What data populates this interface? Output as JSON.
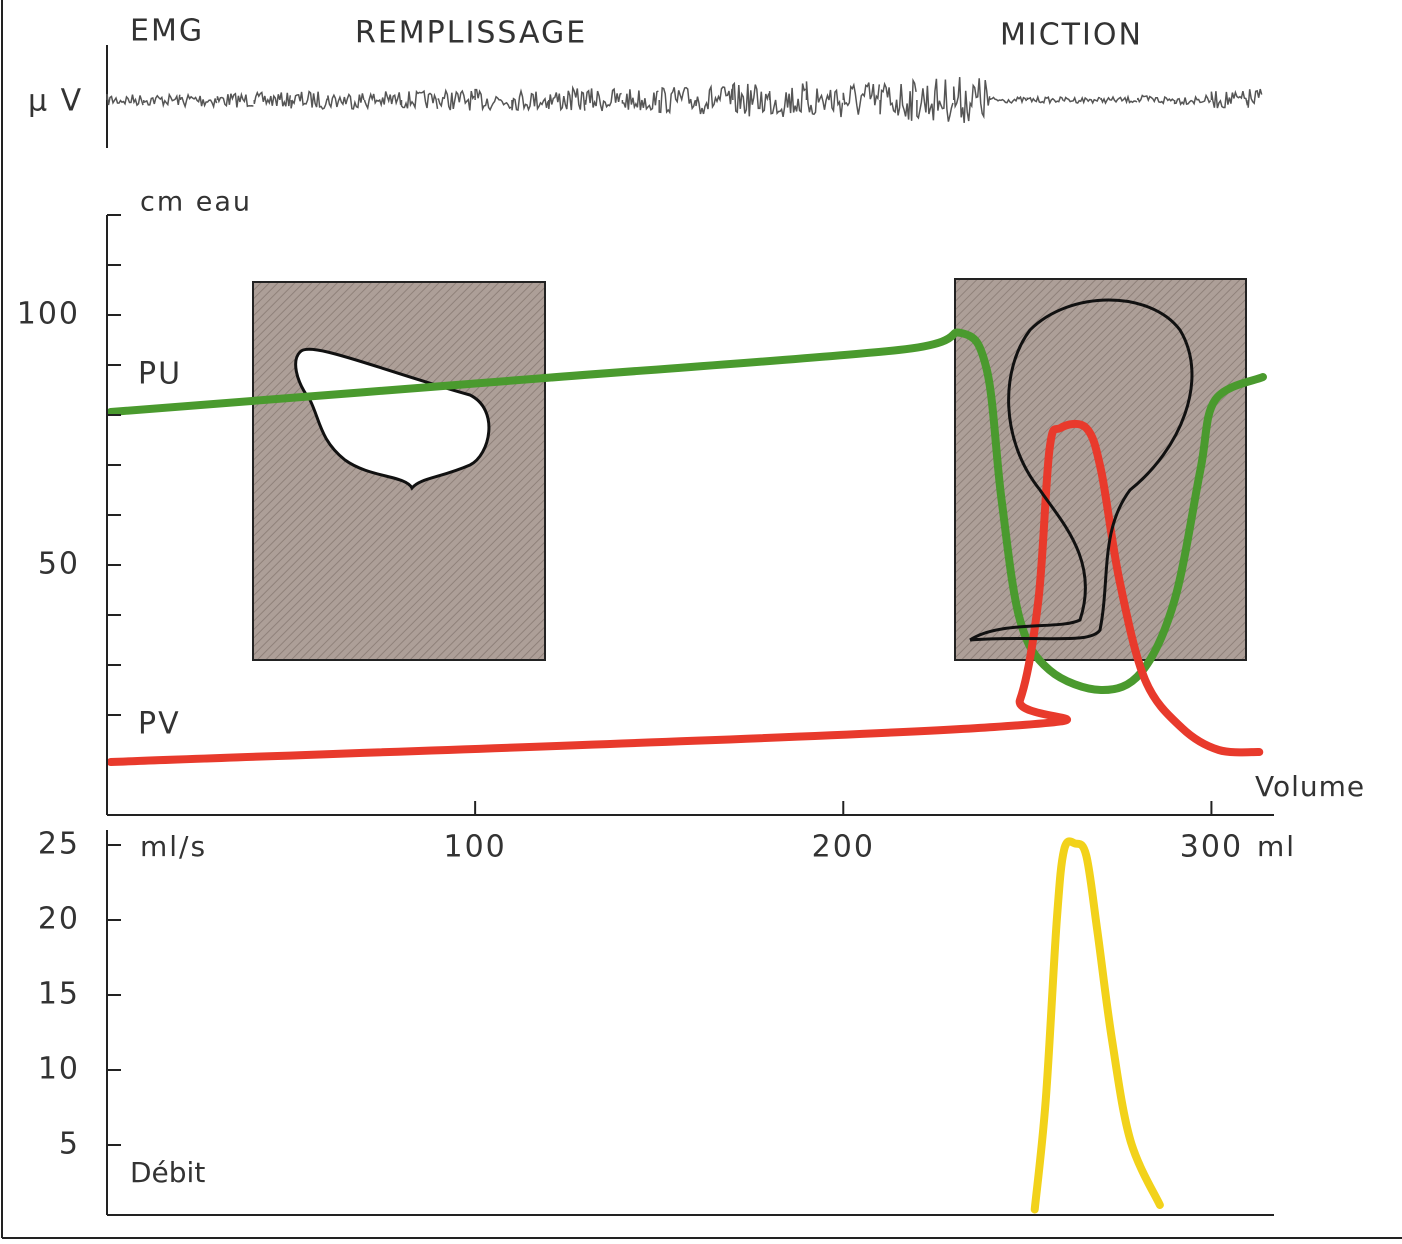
{
  "chart_data": {
    "type": "line",
    "labels": {
      "emg": "EMG",
      "filling": "REMPLISSAGE",
      "voiding": "MICTION",
      "emg_unit": "µ V",
      "pressure_unit": "cm eau",
      "pu": "PU",
      "pv": "PV",
      "x_label": "Volume",
      "x_unit": "ml",
      "flow_unit": "ml/s",
      "flow_label": "Débit"
    },
    "xlim": [
      0,
      317
    ],
    "xticks": [
      100,
      200,
      300
    ],
    "ylim": [
      0,
      120
    ],
    "yticks": [
      50,
      100
    ],
    "yminorticks": [
      20,
      30,
      40,
      60,
      70,
      80,
      90,
      110,
      120
    ],
    "flow_ylim": [
      0,
      25
    ],
    "flow_yticks": [
      5,
      10,
      15,
      20,
      25
    ],
    "emg": {
      "color": "#555555",
      "x": [
        0,
        10,
        20,
        30,
        40,
        50,
        60,
        70,
        80,
        90,
        100,
        110,
        120,
        130,
        140,
        150,
        160,
        170,
        180,
        190,
        200,
        210,
        220,
        230,
        240,
        250,
        260,
        270,
        280,
        290,
        300,
        310
      ],
      "amplitude": [
        4,
        4,
        5,
        5,
        5,
        6,
        6,
        6,
        6,
        7,
        7,
        7,
        8,
        8,
        8,
        9,
        10,
        11,
        12,
        13,
        13,
        14,
        15,
        16,
        2,
        2,
        2,
        2,
        3,
        3,
        6,
        8
      ]
    },
    "series": [
      {
        "name": "PU",
        "color": "#4a9a2e",
        "x": [
          1,
          119,
          215,
          232,
          239,
          243,
          248,
          256,
          270,
          281,
          290,
          297,
          301,
          314
        ],
        "values": [
          80.6,
          87.4,
          93,
          96.4,
          89,
          63,
          39,
          29,
          25,
          28.6,
          43,
          69,
          83,
          87.6
        ]
      },
      {
        "name": "PV",
        "color": "#e83a2c",
        "x": [
          1,
          241,
          248,
          253,
          256,
          259,
          266,
          270,
          275,
          282,
          292,
          302,
          313
        ],
        "values": [
          10.6,
          17.6,
          23,
          43,
          73,
          77.4,
          77.4,
          69,
          47,
          27,
          17.4,
          13,
          12.6
        ]
      },
      {
        "name": "Débit",
        "color": "#f2d21a",
        "axis": "flow",
        "x": [
          252,
          255,
          258,
          260,
          263,
          266,
          269,
          273,
          278,
          286
        ],
        "values": [
          0.7,
          8,
          20,
          24.7,
          25.1,
          24.3,
          19.3,
          12,
          5.3,
          1
        ]
      }
    ]
  }
}
